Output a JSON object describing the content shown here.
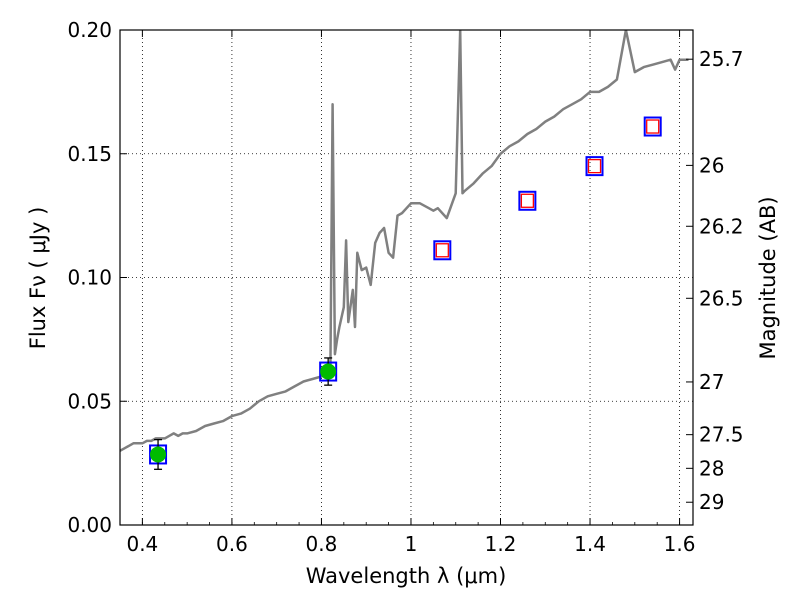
{
  "chart_data": {
    "type": "scatter",
    "title": "",
    "xlabel": "Wavelength  λ (μm)",
    "ylabel": "Flux  Fν  ( μJy )",
    "ylabel_right": "Magnitude (AB)",
    "xlim": [
      0.35,
      1.63
    ],
    "ylim": [
      0.0,
      0.2
    ],
    "grid": true,
    "x_ticks": [
      0.4,
      0.6,
      0.8,
      1.0,
      1.2,
      1.4,
      1.6
    ],
    "x_tick_labels": [
      "0.4",
      "0.6",
      "0.8",
      "1",
      "1.2",
      "1.4",
      "1.6"
    ],
    "y_ticks": [
      0.0,
      0.05,
      0.1,
      0.15,
      0.2
    ],
    "y_tick_labels": [
      "0.00",
      "0.05",
      "0.10",
      "0.15",
      "0.20"
    ],
    "right_ticks": [
      {
        "flux": 0.1882,
        "label": "25.7"
      },
      {
        "flux": 0.1453,
        "label": "26"
      },
      {
        "flux": 0.1207,
        "label": "26.2"
      },
      {
        "flux": 0.0916,
        "label": "26.5"
      },
      {
        "flux": 0.0578,
        "label": "27"
      },
      {
        "flux": 0.0365,
        "label": "27.5"
      },
      {
        "flux": 0.0229,
        "label": "28"
      },
      {
        "flux": 0.0092,
        "label": "29"
      }
    ],
    "series": [
      {
        "kind": "model-spectrum",
        "color": "#808080",
        "x": [
          0.35,
          0.36,
          0.37,
          0.38,
          0.39,
          0.4,
          0.41,
          0.42,
          0.43,
          0.44,
          0.45,
          0.46,
          0.47,
          0.48,
          0.49,
          0.5,
          0.52,
          0.54,
          0.56,
          0.58,
          0.6,
          0.62,
          0.64,
          0.66,
          0.68,
          0.7,
          0.72,
          0.74,
          0.76,
          0.78,
          0.8,
          0.81,
          0.82,
          0.825,
          0.83,
          0.835,
          0.84,
          0.85,
          0.855,
          0.86,
          0.87,
          0.875,
          0.88,
          0.89,
          0.9,
          0.91,
          0.92,
          0.93,
          0.94,
          0.95,
          0.96,
          0.97,
          0.98,
          1.0,
          1.02,
          1.04,
          1.05,
          1.06,
          1.08,
          1.1,
          1.11,
          1.115,
          1.12,
          1.14,
          1.16,
          1.18,
          1.2,
          1.22,
          1.24,
          1.26,
          1.28,
          1.3,
          1.32,
          1.34,
          1.36,
          1.38,
          1.4,
          1.42,
          1.44,
          1.46,
          1.48,
          1.5,
          1.52,
          1.54,
          1.56,
          1.58,
          1.59,
          1.6,
          1.62
        ],
        "y": [
          0.03,
          0.031,
          0.032,
          0.033,
          0.033,
          0.033,
          0.034,
          0.034,
          0.035,
          0.035,
          0.035,
          0.036,
          0.037,
          0.036,
          0.037,
          0.037,
          0.038,
          0.04,
          0.041,
          0.042,
          0.044,
          0.045,
          0.047,
          0.05,
          0.052,
          0.053,
          0.054,
          0.056,
          0.058,
          0.059,
          0.06,
          0.061,
          0.063,
          0.17,
          0.069,
          0.075,
          0.08,
          0.088,
          0.115,
          0.082,
          0.095,
          0.08,
          0.11,
          0.103,
          0.104,
          0.097,
          0.114,
          0.118,
          0.12,
          0.11,
          0.108,
          0.125,
          0.126,
          0.13,
          0.13,
          0.128,
          0.127,
          0.128,
          0.124,
          0.134,
          0.2,
          0.134,
          0.135,
          0.138,
          0.142,
          0.145,
          0.15,
          0.153,
          0.155,
          0.158,
          0.16,
          0.163,
          0.165,
          0.168,
          0.17,
          0.172,
          0.175,
          0.175,
          0.177,
          0.18,
          0.2,
          0.183,
          0.185,
          0.186,
          0.187,
          0.188,
          0.184,
          0.188,
          0.188
        ]
      },
      {
        "kind": "observed-detections",
        "color": "#00bb00",
        "x": [
          0.435,
          0.815
        ],
        "y": [
          0.0285,
          0.062
        ],
        "yerr": [
          0.006,
          0.0055
        ]
      },
      {
        "kind": "model-band-flux",
        "color": "#0000ff",
        "x": [
          0.435,
          0.815,
          1.07,
          1.26,
          1.41,
          1.54
        ],
        "y": [
          0.0285,
          0.062,
          0.111,
          0.131,
          0.145,
          0.161
        ]
      },
      {
        "kind": "predicted-flux",
        "color": "#ff0000",
        "x": [
          1.07,
          1.26,
          1.41,
          1.54
        ],
        "y": [
          0.111,
          0.131,
          0.145,
          0.161
        ]
      }
    ]
  }
}
